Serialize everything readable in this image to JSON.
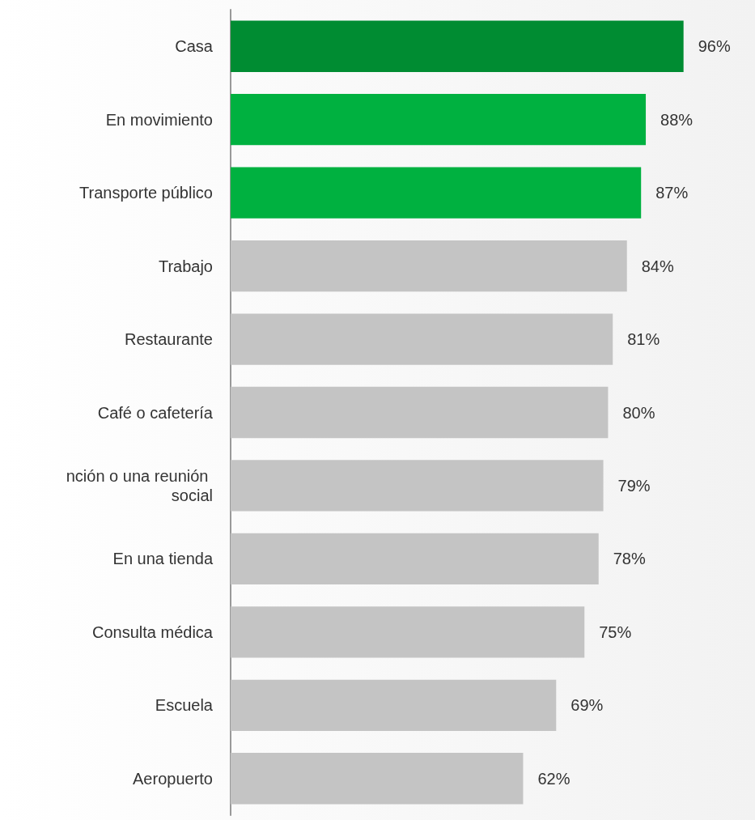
{
  "chart_data": {
    "type": "bar",
    "orientation": "horizontal",
    "categories": [
      "Casa",
      "En movimiento",
      "Transporte público",
      "Trabajo",
      "Restaurante",
      "Café o cafetería",
      "nción o una reunión social",
      "En una tienda",
      "Consulta médica",
      "Escuela",
      "Aeropuerto"
    ],
    "values": [
      96,
      88,
      87,
      84,
      81,
      80,
      79,
      78,
      75,
      69,
      62
    ],
    "value_labels": [
      "96%",
      "88%",
      "87%",
      "84%",
      "81%",
      "80%",
      "79%",
      "78%",
      "75%",
      "69%",
      "62%"
    ],
    "colors": [
      "#008c32",
      "#00b140",
      "#00b140",
      "#c4c4c4",
      "#c4c4c4",
      "#c4c4c4",
      "#c4c4c4",
      "#c4c4c4",
      "#c4c4c4",
      "#c4c4c4",
      "#c4c4c4"
    ],
    "tick_labels": "y"
  }
}
